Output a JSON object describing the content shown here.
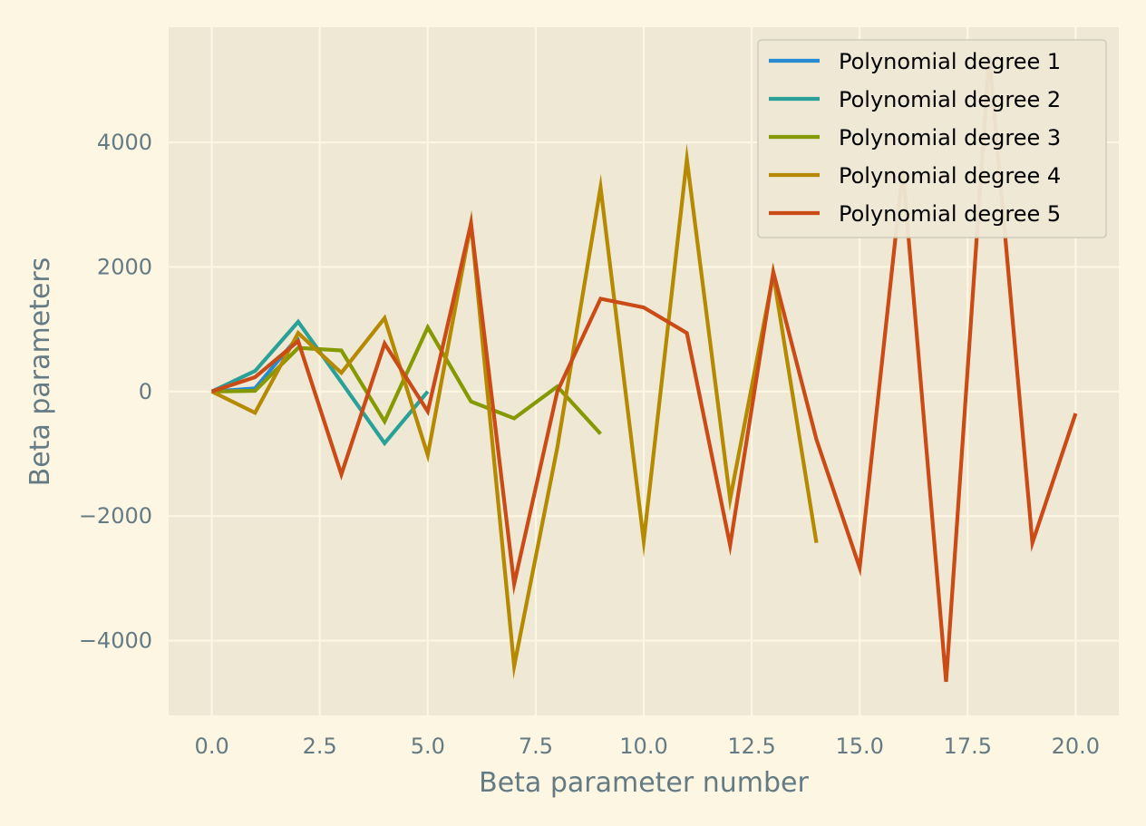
{
  "chart_data": {
    "type": "line",
    "title": "",
    "xlabel": "Beta parameter number",
    "ylabel": "Beta parameters",
    "xlim": [
      -1,
      21
    ],
    "ylim": [
      -5200,
      5850
    ],
    "x_ticks": [
      {
        "value": 0,
        "label": "0.0"
      },
      {
        "value": 2.5,
        "label": "2.5"
      },
      {
        "value": 5,
        "label": "5.0"
      },
      {
        "value": 7.5,
        "label": "7.5"
      },
      {
        "value": 10,
        "label": "10.0"
      },
      {
        "value": 12.5,
        "label": "12.5"
      },
      {
        "value": 15,
        "label": "15.0"
      },
      {
        "value": 17.5,
        "label": "17.5"
      },
      {
        "value": 20,
        "label": "20.0"
      }
    ],
    "y_ticks": [
      {
        "value": 4000,
        "label": "4000"
      },
      {
        "value": 2000,
        "label": "2000"
      },
      {
        "value": 0,
        "label": "0"
      },
      {
        "value": -2000,
        "label": "−2000"
      },
      {
        "value": -4000,
        "label": "−4000"
      }
    ],
    "grid": true,
    "legend_position": "top-right",
    "colors": {
      "figure_background": "#fdf6e3",
      "plot_background": "#eee8d5",
      "grid": "#fdf6e3",
      "text": "#657b83"
    },
    "series": [
      {
        "name": "Polynomial degree 1",
        "color": "#268bd2",
        "x": [
          0,
          1,
          2
        ],
        "y": [
          0,
          50,
          880
        ]
      },
      {
        "name": "Polynomial degree 2",
        "color": "#2aa198",
        "x": [
          0,
          1,
          2,
          3,
          4,
          5
        ],
        "y": [
          0,
          330,
          1120,
          150,
          -830,
          0
        ]
      },
      {
        "name": "Polynomial degree 3",
        "color": "#859900",
        "x": [
          0,
          1,
          2,
          3,
          4,
          5,
          6,
          7,
          8,
          9
        ],
        "y": [
          0,
          10,
          700,
          660,
          -480,
          1030,
          -160,
          -430,
          80,
          -680
        ]
      },
      {
        "name": "Polynomial degree 4",
        "color": "#b58900",
        "x": [
          0,
          1,
          2,
          3,
          4,
          5,
          6,
          7,
          8,
          9,
          10,
          11,
          12,
          13,
          14
        ],
        "y": [
          0,
          -340,
          940,
          300,
          1180,
          -1020,
          2700,
          -4410,
          -900,
          3280,
          -2400,
          3730,
          -1730,
          1880,
          -2430
        ]
      },
      {
        "name": "Polynomial degree 5",
        "color": "#cb4b16",
        "x": [
          0,
          1,
          2,
          3,
          4,
          5,
          6,
          7,
          8,
          9,
          10,
          11,
          12,
          13,
          14,
          15,
          16,
          17,
          18,
          19,
          20
        ],
        "y": [
          0,
          230,
          810,
          -1330,
          770,
          -320,
          2700,
          -3090,
          0,
          1490,
          1350,
          940,
          -2470,
          1920,
          -770,
          -2830,
          3560,
          -4660,
          5380,
          -2430,
          -350
        ]
      }
    ]
  }
}
